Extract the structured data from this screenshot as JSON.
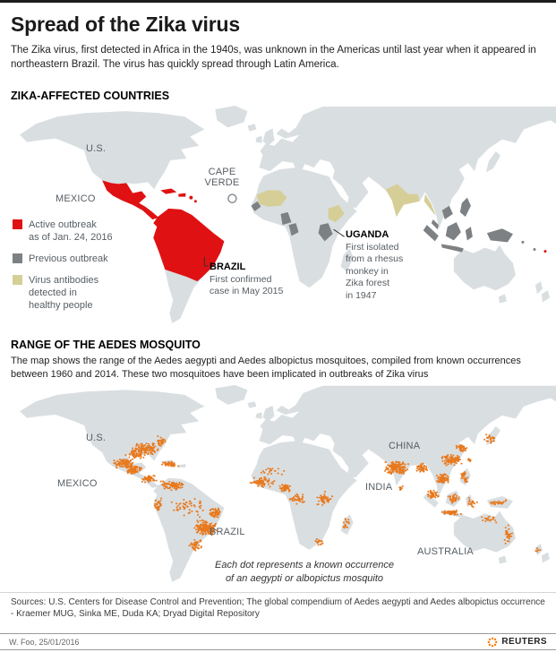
{
  "page": {
    "title": "Spread of the Zika virus",
    "intro": "The Zika virus, first detected in Africa in the 1940s, was unknown in the Americas until last year when it appeared in northeastern Brazil. The virus has quickly spread through Latin America."
  },
  "section_affected": {
    "heading": "ZIKA-AFFECTED COUNTRIES",
    "legend": [
      {
        "key": "active",
        "label": "Active outbreak\nas of Jan. 24, 2016"
      },
      {
        "key": "previous",
        "label": "Previous outbreak"
      },
      {
        "key": "antibodies",
        "label": "Virus antibodies\ndetected in\nhealthy people"
      }
    ]
  },
  "map1": {
    "labels": {
      "us": "U.S.",
      "mexico": "MEXICO",
      "cape_verde": "CAPE\nVERDE"
    },
    "annotations": {
      "brazil": {
        "name": "BRAZIL",
        "note": "First confirmed\ncase in May 2015"
      },
      "uganda": {
        "name": "UGANDA",
        "note": "First isolated\nfrom a rhesus\nmonkey in\nZika forest\nin 1947"
      }
    }
  },
  "section_mosquito": {
    "heading": "RANGE OF THE AEDES MOSQUITO",
    "description": "The map shows the range of the Aedes aegypti and Aedes albopictus mosquitoes, compiled from known occurrences between 1960 and 2014. These two mosquitoes have been implicated in outbreaks of Zika virus"
  },
  "map2": {
    "labels": {
      "us": "U.S.",
      "mexico": "MEXICO",
      "brazil": "BRAZIL",
      "china": "CHINA",
      "india": "INDIA",
      "australia": "AUSTRALIA"
    },
    "note": "Each dot represents a known occurrence\nof an aegypti or albopictus mosquito",
    "dot_clusters": [
      [
        162,
        80,
        16,
        8,
        120
      ],
      [
        150,
        87,
        13,
        4,
        50
      ],
      [
        180,
        70,
        5,
        7,
        30
      ],
      [
        138,
        97,
        12,
        6,
        90
      ],
      [
        150,
        105,
        10,
        5,
        70
      ],
      [
        166,
        116,
        9,
        5,
        60
      ],
      [
        190,
        98,
        12,
        3,
        40
      ],
      [
        192,
        124,
        14,
        6,
        80
      ],
      [
        177,
        147,
        5,
        10,
        35
      ],
      [
        210,
        150,
        22,
        14,
        50
      ],
      [
        230,
        175,
        14,
        10,
        170
      ],
      [
        240,
        157,
        8,
        6,
        60
      ],
      [
        218,
        196,
        8,
        8,
        40
      ],
      [
        292,
        120,
        14,
        7,
        70
      ],
      [
        318,
        127,
        8,
        5,
        50
      ],
      [
        332,
        140,
        10,
        7,
        35
      ],
      [
        362,
        140,
        9,
        9,
        45
      ],
      [
        302,
        106,
        16,
        5,
        20
      ],
      [
        386,
        171,
        4,
        8,
        18
      ],
      [
        356,
        193,
        5,
        5,
        15
      ],
      [
        442,
        102,
        14,
        9,
        150
      ],
      [
        447,
        127,
        3,
        3,
        10
      ],
      [
        470,
        103,
        7,
        6,
        45
      ],
      [
        494,
        116,
        9,
        7,
        70
      ],
      [
        483,
        135,
        7,
        6,
        45
      ],
      [
        503,
        157,
        12,
        3,
        50
      ],
      [
        506,
        140,
        7,
        6,
        35
      ],
      [
        518,
        114,
        4,
        8,
        35
      ],
      [
        526,
        144,
        6,
        6,
        20
      ],
      [
        504,
        93,
        12,
        7,
        100
      ],
      [
        515,
        79,
        7,
        5,
        45
      ],
      [
        523,
        93,
        2,
        2,
        10
      ],
      [
        547,
        67,
        7,
        6,
        25
      ],
      [
        555,
        145,
        11,
        4,
        25
      ],
      [
        546,
        165,
        11,
        5,
        20
      ],
      [
        567,
        183,
        5,
        12,
        30
      ],
      [
        600,
        203,
        3,
        4,
        6
      ]
    ]
  },
  "colors": {
    "land": "#d9dee1",
    "active": "#e01113",
    "previous": "#7e8184",
    "antibodies": "#d6ce97",
    "dot": "#e8791d",
    "brand": "#ff7a00"
  },
  "footer": {
    "sources": "Sources: U.S. Centers for Disease Control and Prevention; The global compendium of Aedes aegypti and Aedes albopictus occurrence - Kraemer MUG, Sinka ME, Duda KA; Dryad Digital Repository",
    "credit": "W. Foo, 25/01/2016",
    "brand": "REUTERS"
  }
}
